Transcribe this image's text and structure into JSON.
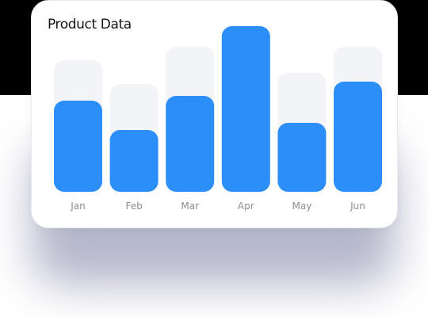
{
  "title": "Product Data",
  "colors": {
    "bar": "#2b8ef9",
    "track": "#f2f4f7"
  },
  "chart_data": {
    "type": "bar",
    "categories": [
      "Jan",
      "Feb",
      "Mar",
      "Apr",
      "May",
      "Jun"
    ],
    "series": [
      {
        "values": [
          115,
          78,
          121,
          209,
          87,
          139
        ]
      },
      {
        "values": [
          166,
          136,
          183,
          209,
          150,
          183
        ]
      }
    ],
    "ylim": [
      0,
      209
    ],
    "grid": false
  }
}
